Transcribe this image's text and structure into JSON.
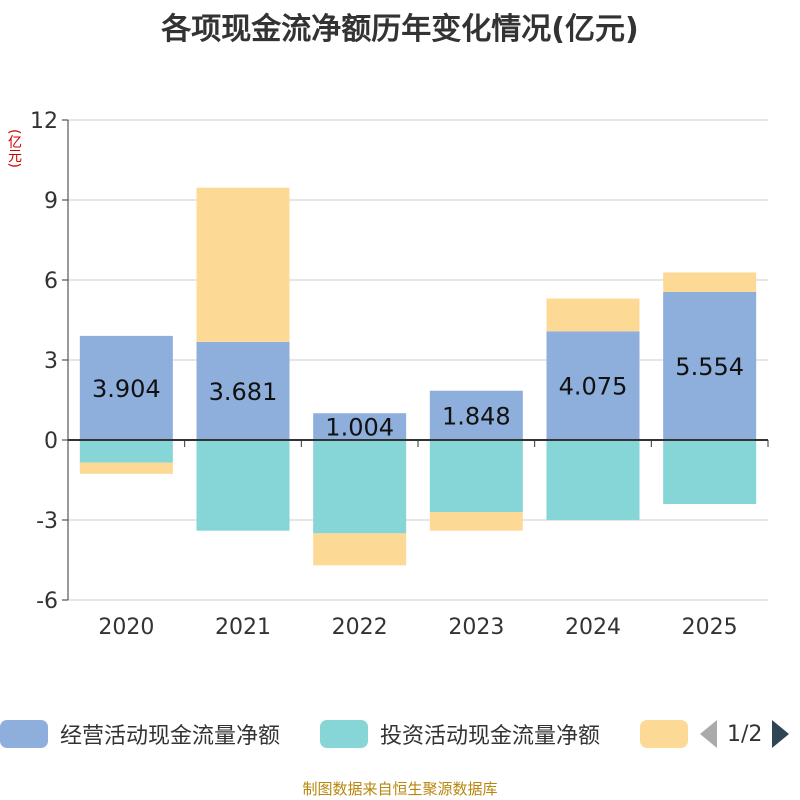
{
  "chart_data": {
    "type": "bar",
    "stacked": true,
    "title": "各项现金流净额历年变化情况(亿元)",
    "ylabel": "(亿元)",
    "xlabel": "",
    "categories": [
      "2020",
      "2021",
      "2022",
      "2023",
      "2024",
      "2025"
    ],
    "ylim": [
      -6,
      12
    ],
    "yticks": [
      -6,
      -3,
      0,
      3,
      6,
      9,
      12
    ],
    "grid": true,
    "series": [
      {
        "name": "经营活动现金流量净额",
        "color": "#8eaedb",
        "values": [
          3.904,
          3.681,
          1.004,
          1.848,
          4.075,
          5.554
        ],
        "labels": [
          "3.904",
          "3.681",
          "1.004",
          "1.848",
          "4.075",
          "5.554"
        ]
      },
      {
        "name": "投资活动现金流量净额",
        "color": "#86d5d7",
        "values": [
          -0.85,
          -3.4,
          -3.5,
          -2.7,
          -3.0,
          -2.4
        ]
      },
      {
        "name": "",
        "color": "#fdd996",
        "values": [
          -0.42,
          5.78,
          -1.2,
          -0.7,
          1.23,
          0.73
        ]
      }
    ]
  },
  "legend": {
    "items": [
      {
        "label": "经营活动现金流量净额",
        "color": "#8eaedb"
      },
      {
        "label": "投资活动现金流量净额",
        "color": "#86d5d7"
      },
      {
        "label": "",
        "color": "#fdd996"
      }
    ],
    "page": "1/2"
  },
  "footer": {
    "source": "制图数据来自恒生聚源数据库"
  }
}
